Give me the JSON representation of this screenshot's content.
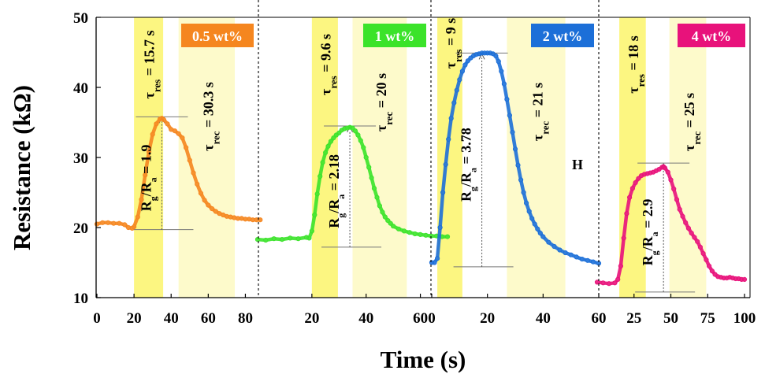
{
  "chart_data": {
    "type": "line",
    "ylabel": "Resistance (kΩ)",
    "xlabel": "Time (s)",
    "ylim": [
      10,
      50
    ],
    "yticks": [
      "10",
      "20",
      "30",
      "40",
      "50"
    ],
    "grid": false,
    "panels": [
      {
        "label": "0.5 wt%",
        "color": "#f5861f",
        "xlim": [
          0,
          90
        ],
        "xticks": [
          "0",
          "20",
          "40",
          "60",
          "80"
        ],
        "tau_res": "τres = 15.7 s",
        "tau_rec": "τrec = 30.3 s",
        "ratio": "Rg/Ra = 1.9",
        "res_window": [
          20,
          35.7
        ],
        "rec_window": [
          44,
          74.3
        ],
        "ra_level": 19.7,
        "rg_level": 35.8,
        "x": [
          0,
          3,
          6,
          9,
          12,
          15,
          17,
          19,
          20,
          22,
          24,
          26,
          28,
          30,
          32,
          34,
          35,
          36,
          38,
          40,
          42,
          44,
          46,
          48,
          50,
          52,
          54,
          56,
          58,
          60,
          62,
          64,
          66,
          68,
          70,
          72,
          74,
          76,
          78,
          80,
          82,
          84,
          86,
          88
        ],
        "y": [
          20.5,
          20.7,
          20.7,
          20.6,
          20.6,
          20.4,
          20.0,
          19.9,
          20.1,
          21.5,
          24.0,
          27.5,
          30.8,
          33.3,
          34.8,
          35.5,
          35.6,
          35.4,
          34.8,
          34.0,
          33.8,
          33.4,
          32.8,
          31.4,
          29.6,
          27.8,
          26.2,
          24.9,
          23.9,
          23.2,
          22.7,
          22.3,
          22.0,
          21.8,
          21.6,
          21.5,
          21.4,
          21.3,
          21.3,
          21.2,
          21.2,
          21.1,
          21.1,
          21.1
        ]
      },
      {
        "label": "1 wt%",
        "color": "#3be32a",
        "xlim": [
          0,
          70
        ],
        "xticks": [
          "20",
          "40",
          "60"
        ],
        "tau_res": "τres = 9.6 s",
        "tau_rec": "τrec = 20 s",
        "ratio": "Rg/Ra = 2.18",
        "res_window": [
          20,
          29.6
        ],
        "rec_window": [
          35,
          55
        ],
        "ra_level": 17.2,
        "rg_level": 34.5,
        "x": [
          0,
          3,
          6,
          9,
          12,
          15,
          18,
          19,
          20,
          21,
          22,
          23,
          24,
          25,
          26,
          27,
          28,
          29,
          30,
          31,
          32,
          33,
          34,
          35,
          36,
          37,
          38,
          39,
          40,
          41,
          42,
          43,
          44,
          45,
          46,
          47,
          48,
          49,
          50,
          52,
          54,
          56,
          58,
          60,
          62,
          64,
          66,
          68,
          70
        ],
        "y": [
          18.3,
          18.2,
          18.4,
          18.3,
          18.5,
          18.4,
          18.6,
          18.5,
          19.5,
          21.8,
          24.8,
          27.3,
          29.3,
          30.7,
          31.6,
          32.3,
          32.8,
          33.2,
          33.5,
          33.9,
          34.1,
          34.2,
          34.3,
          34.2,
          33.8,
          33.2,
          32.4,
          31.4,
          30.0,
          28.6,
          27.1,
          25.6,
          24.3,
          23.1,
          22.2,
          21.5,
          21.0,
          20.6,
          20.2,
          19.8,
          19.5,
          19.3,
          19.1,
          19.0,
          18.9,
          18.8,
          18.8,
          18.7,
          18.7
        ]
      },
      {
        "label": "2 wt%",
        "color": "#1c6fd8",
        "xlim": [
          0,
          60
        ],
        "xticks": [
          "0",
          "20",
          "40",
          "60"
        ],
        "tau_res": "τres = 9 s",
        "tau_rec": "τrec = 21 s",
        "ratio": "Rg/Ra = 3.78",
        "res_window": [
          2,
          11
        ],
        "rec_window": [
          27,
          48
        ],
        "ra_level": 14.4,
        "rg_level": 44.9,
        "x": [
          0,
          1,
          2,
          3,
          4,
          5,
          6,
          7,
          8,
          9,
          10,
          11,
          12,
          13,
          14,
          15,
          16,
          17,
          18,
          19,
          20,
          21,
          22,
          23,
          24,
          25,
          26,
          27,
          28,
          29,
          30,
          31,
          32,
          33,
          34,
          35,
          36,
          37,
          38,
          39,
          40,
          42,
          44,
          46,
          48,
          50,
          52,
          54,
          56,
          58,
          60
        ],
        "y": [
          15.0,
          15.0,
          15.6,
          20.0,
          25.0,
          29.0,
          32.6,
          35.6,
          37.8,
          39.6,
          41.1,
          42.3,
          43.2,
          43.8,
          44.2,
          44.5,
          44.7,
          44.8,
          44.9,
          44.9,
          44.9,
          44.9,
          44.8,
          44.5,
          43.7,
          42.3,
          40.5,
          38.3,
          36.0,
          33.6,
          31.2,
          28.9,
          26.8,
          25.0,
          23.5,
          22.3,
          21.3,
          20.5,
          19.8,
          19.2,
          18.7,
          17.9,
          17.3,
          16.8,
          16.4,
          16.1,
          15.8,
          15.5,
          15.3,
          15.1,
          14.9
        ]
      },
      {
        "label": "4 wt%",
        "color": "#e8127b",
        "xlim": [
          0,
          100
        ],
        "xticks": [
          "25",
          "50",
          "75",
          "100"
        ],
        "tau_res": "τres = 18 s",
        "tau_rec": "τrec = 25 s",
        "ratio": "Rg/Ra = 2.9",
        "res_window": [
          15,
          33
        ],
        "rec_window": [
          49,
          74
        ],
        "ra_level": 10.8,
        "rg_level": 29.2,
        "x": [
          0,
          4,
          8,
          12,
          14,
          16,
          18,
          20,
          22,
          24,
          26,
          28,
          30,
          32,
          34,
          36,
          38,
          40,
          42,
          44,
          45,
          46,
          48,
          50,
          52,
          54,
          56,
          58,
          60,
          62,
          64,
          66,
          68,
          70,
          72,
          74,
          76,
          78,
          80,
          82,
          84,
          86,
          88,
          90,
          92,
          94,
          96,
          98,
          100
        ],
        "y": [
          12.2,
          12.1,
          12.0,
          12.1,
          12.6,
          14.5,
          18.5,
          22.0,
          24.3,
          25.6,
          26.4,
          27.0,
          27.4,
          27.6,
          27.7,
          27.8,
          27.9,
          28.1,
          28.3,
          28.6,
          28.7,
          28.5,
          27.9,
          26.8,
          25.5,
          24.0,
          22.6,
          21.6,
          20.7,
          19.9,
          19.2,
          18.6,
          18.0,
          17.2,
          16.3,
          15.4,
          14.5,
          13.8,
          13.3,
          13.0,
          12.9,
          12.8,
          12.8,
          12.9,
          12.8,
          12.7,
          12.7,
          12.6,
          12.6
        ]
      }
    ],
    "annotations": [
      "H"
    ]
  }
}
